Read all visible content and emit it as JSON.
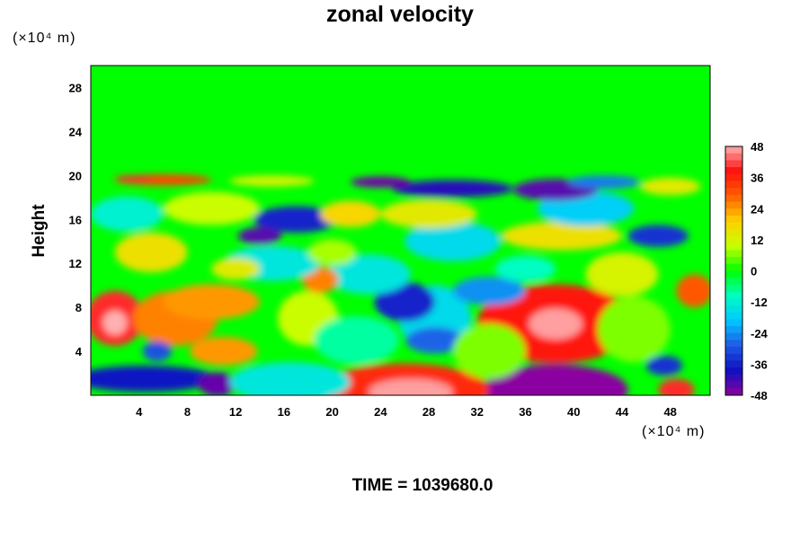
{
  "chart_data": {
    "type": "heatmap",
    "title": "zonal velocity",
    "ylabel": "Height",
    "y_unit": "(×10⁴ m)",
    "x_unit": "(×10⁴ m)",
    "footer": "TIME = 1039680.0",
    "xlim": [
      0,
      51.3
    ],
    "ylim": [
      0,
      30
    ],
    "x_ticks": [
      4,
      8,
      12,
      16,
      20,
      24,
      28,
      32,
      36,
      40,
      44,
      48
    ],
    "y_ticks": [
      4,
      8,
      12,
      16,
      20,
      24,
      28
    ],
    "color_scale": {
      "min": -48,
      "max": 48,
      "ticks": [
        48,
        36,
        24,
        12,
        0,
        -12,
        -24,
        -36,
        -48
      ],
      "colors": [
        "#8b00a0",
        "#1010c0",
        "#1e5ae6",
        "#00c8ff",
        "#00ffc0",
        "#00ff00",
        "#c8ff00",
        "#ffd000",
        "#ff6000",
        "#ff1010",
        "#ffb0b0"
      ]
    },
    "background_value": 0,
    "features": [
      {
        "x": 38.5,
        "y": 6.5,
        "rx": 6.5,
        "ry": 3.6,
        "value": 38
      },
      {
        "x": 38.5,
        "y": 6.5,
        "rx": 2.2,
        "ry": 1.4,
        "value": 47
      },
      {
        "x": 38.5,
        "y": 0.5,
        "rx": 6,
        "ry": 2.3,
        "value": -48
      },
      {
        "x": 26,
        "y": 0.5,
        "rx": 7,
        "ry": 2.4,
        "value": 35
      },
      {
        "x": 26.5,
        "y": 0.3,
        "rx": 3.5,
        "ry": 1.2,
        "value": 47
      },
      {
        "x": 2,
        "y": 7,
        "rx": 2.4,
        "ry": 2.5,
        "value": 40
      },
      {
        "x": 2,
        "y": 6.6,
        "rx": 1,
        "ry": 1.1,
        "value": 48
      },
      {
        "x": 4.5,
        "y": 1.5,
        "rx": 6,
        "ry": 1.2,
        "value": -38
      },
      {
        "x": 10.5,
        "y": 1,
        "rx": 1.6,
        "ry": 1.1,
        "value": -45
      },
      {
        "x": 7,
        "y": 7,
        "rx": 3.5,
        "ry": 2.5,
        "value": 26
      },
      {
        "x": 10,
        "y": 8.5,
        "rx": 4,
        "ry": 1.6,
        "value": 24
      },
      {
        "x": 5.5,
        "y": 4,
        "rx": 1.2,
        "ry": 0.9,
        "value": -30
      },
      {
        "x": 11,
        "y": 4,
        "rx": 2.8,
        "ry": 1.3,
        "value": 24
      },
      {
        "x": 16.5,
        "y": 1.2,
        "rx": 5,
        "ry": 1.8,
        "value": -14
      },
      {
        "x": 48.5,
        "y": 0.5,
        "rx": 1.5,
        "ry": 1,
        "value": 40
      },
      {
        "x": 47.5,
        "y": 2.7,
        "rx": 1.5,
        "ry": 0.9,
        "value": -34
      },
      {
        "x": 28.5,
        "y": 7,
        "rx": 3,
        "ry": 3,
        "value": -16
      },
      {
        "x": 26,
        "y": 8.5,
        "rx": 2.5,
        "ry": 1.8,
        "value": -36
      },
      {
        "x": 28.5,
        "y": 5,
        "rx": 2.4,
        "ry": 1.2,
        "value": -28
      },
      {
        "x": 33,
        "y": 9.5,
        "rx": 3,
        "ry": 1.3,
        "value": -24
      },
      {
        "x": 18,
        "y": 7,
        "rx": 2.5,
        "ry": 2.5,
        "value": 10
      },
      {
        "x": 22,
        "y": 5,
        "rx": 3.5,
        "ry": 2.2,
        "value": -8
      },
      {
        "x": 33,
        "y": 4,
        "rx": 3,
        "ry": 2.5,
        "value": 6
      },
      {
        "x": 45,
        "y": 6,
        "rx": 3,
        "ry": 3,
        "value": 6
      },
      {
        "x": 50,
        "y": 9.5,
        "rx": 1.5,
        "ry": 1.5,
        "value": 30
      },
      {
        "x": 44,
        "y": 11,
        "rx": 3,
        "ry": 2,
        "value": 12
      },
      {
        "x": 23,
        "y": 11,
        "rx": 3.5,
        "ry": 1.8,
        "value": -14
      },
      {
        "x": 19,
        "y": 10.5,
        "rx": 1.5,
        "ry": 1.2,
        "value": 26
      },
      {
        "x": 15,
        "y": 12,
        "rx": 4,
        "ry": 1.6,
        "value": -14
      },
      {
        "x": 5,
        "y": 13,
        "rx": 3,
        "ry": 1.8,
        "value": 16
      },
      {
        "x": 30,
        "y": 14,
        "rx": 4,
        "ry": 1.8,
        "value": -16
      },
      {
        "x": 39,
        "y": 14.5,
        "rx": 5,
        "ry": 1.3,
        "value": 16
      },
      {
        "x": 28,
        "y": 16.5,
        "rx": 4,
        "ry": 1.3,
        "value": 14
      },
      {
        "x": 47,
        "y": 14.5,
        "rx": 2.5,
        "ry": 1,
        "value": -34
      },
      {
        "x": 41,
        "y": 17,
        "rx": 4,
        "ry": 1.6,
        "value": -18
      },
      {
        "x": 17,
        "y": 16,
        "rx": 3.5,
        "ry": 1.2,
        "value": -36
      },
      {
        "x": 14,
        "y": 14.5,
        "rx": 1.8,
        "ry": 0.8,
        "value": -44
      },
      {
        "x": 10,
        "y": 17,
        "rx": 4,
        "ry": 1.5,
        "value": 10
      },
      {
        "x": 3,
        "y": 16.5,
        "rx": 3,
        "ry": 1.6,
        "value": -12
      },
      {
        "x": 21.5,
        "y": 16.5,
        "rx": 2.5,
        "ry": 1.2,
        "value": 18
      },
      {
        "x": 30,
        "y": 18.8,
        "rx": 5,
        "ry": 0.8,
        "value": -40
      },
      {
        "x": 38.5,
        "y": 18.7,
        "rx": 3.5,
        "ry": 1,
        "value": -44
      },
      {
        "x": 24,
        "y": 19.4,
        "rx": 2.5,
        "ry": 0.5,
        "value": -46
      },
      {
        "x": 42.5,
        "y": 19.4,
        "rx": 3,
        "ry": 0.6,
        "value": -26
      },
      {
        "x": 6,
        "y": 19.6,
        "rx": 4,
        "ry": 0.5,
        "value": 32
      },
      {
        "x": 3.5,
        "y": 19.7,
        "rx": 1.5,
        "ry": 0.3,
        "value": 40
      },
      {
        "x": 15,
        "y": 19.5,
        "rx": 3.5,
        "ry": 0.5,
        "value": 12
      },
      {
        "x": 48,
        "y": 19,
        "rx": 2.5,
        "ry": 0.8,
        "value": 14
      },
      {
        "x": 20,
        "y": 13,
        "rx": 2,
        "ry": 1.2,
        "value": 8
      },
      {
        "x": 36,
        "y": 11.5,
        "rx": 2.5,
        "ry": 1.2,
        "value": -10
      },
      {
        "x": 12,
        "y": 11.5,
        "rx": 2,
        "ry": 1,
        "value": 14
      }
    ]
  }
}
